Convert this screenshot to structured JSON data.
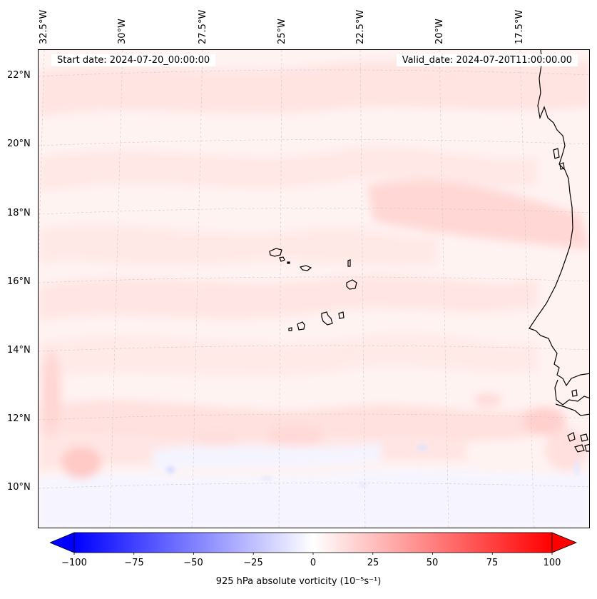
{
  "map": {
    "start_label": "Start date: 2024-07-20_00:00:00",
    "valid_label": "Valid_date: 2024-07-20T11:00:00.00",
    "longitude_labels": [
      "32.5°W",
      "30°W",
      "27.5°W",
      "25°W",
      "22.5°W",
      "20°W",
      "17.5°W"
    ],
    "latitude_labels": [
      "22°N",
      "20°N",
      "18°N",
      "16°N",
      "14°N",
      "12°N",
      "10°N"
    ],
    "gridlines": true,
    "colormap": "bwr",
    "colors": {
      "negative": "#0000ff",
      "zero": "#ffffff",
      "positive": "#ff0000",
      "coastline": "#000000"
    }
  },
  "colorbar": {
    "ticks": [
      "−100",
      "−75",
      "−50",
      "−25",
      "0",
      "25",
      "50",
      "75",
      "100"
    ],
    "min": -100,
    "max": 100,
    "label": "925 hPa absolute vorticity (10⁻⁵s⁻¹)",
    "extend": "both"
  }
}
